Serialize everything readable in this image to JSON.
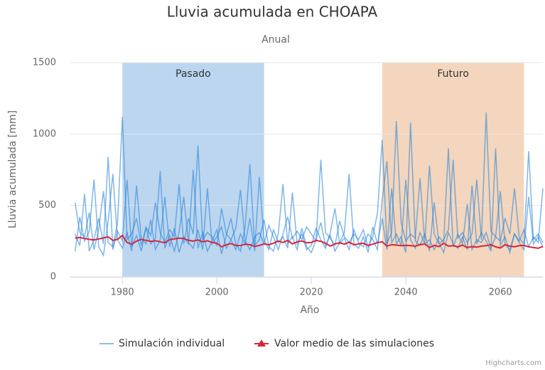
{
  "chart_data": {
    "type": "line",
    "title": "Lluvia acumulada en CHOAPA",
    "subtitle": "Anual",
    "x_label": "Año",
    "y_label": "Lluvia acumulada [mm]",
    "credits": "Highcharts.com",
    "xlim": [
      1969,
      2069
    ],
    "xticks": [
      1980,
      2000,
      2020,
      2040,
      2060
    ],
    "ylim": [
      0,
      1500
    ],
    "yticks": [
      0,
      500,
      1000,
      1500
    ],
    "grid": true,
    "legend": "bottom",
    "plot_bands": [
      {
        "label": "Pasado",
        "from": 1980,
        "to": 2010,
        "color": "#bcd6f0"
      },
      {
        "label": "Futuro",
        "from": 2035,
        "to": 2065,
        "color": "#f3d6bd"
      }
    ],
    "x": [
      1970,
      1971,
      1972,
      1973,
      1974,
      1975,
      1976,
      1977,
      1978,
      1979,
      1980,
      1981,
      1982,
      1983,
      1984,
      1985,
      1986,
      1987,
      1988,
      1989,
      1990,
      1991,
      1992,
      1993,
      1994,
      1995,
      1996,
      1997,
      1998,
      1999,
      2000,
      2001,
      2002,
      2003,
      2004,
      2005,
      2006,
      2007,
      2008,
      2009,
      2010,
      2011,
      2012,
      2013,
      2014,
      2015,
      2016,
      2017,
      2018,
      2019,
      2020,
      2021,
      2022,
      2023,
      2024,
      2025,
      2026,
      2027,
      2028,
      2029,
      2030,
      2031,
      2032,
      2033,
      2034,
      2035,
      2036,
      2037,
      2038,
      2039,
      2040,
      2041,
      2042,
      2043,
      2044,
      2045,
      2046,
      2047,
      2048,
      2049,
      2050,
      2051,
      2052,
      2053,
      2054,
      2055,
      2056,
      2057,
      2058,
      2059,
      2060,
      2061,
      2062,
      2063,
      2064,
      2065,
      2066,
      2067,
      2068,
      2069
    ],
    "simulations": {
      "name": "Simulación individual",
      "color": "#2b85d8",
      "values": [
        [
          520,
          310,
          280,
          450,
          190,
          330,
          600,
          240,
          210,
          380,
          1120,
          260,
          300,
          410,
          220,
          350,
          290,
          520,
          310,
          240,
          330,
          280,
          650,
          230,
          410,
          300,
          920,
          260,
          310,
          280,
          220,
          480,
          300,
          260,
          340,
          610,
          250,
          190,
          280,
          310,
          230,
          360,
          280,
          190,
          300,
          420,
          270,
          320,
          260,
          350,
          300,
          250,
          820,
          310,
          270,
          220,
          390,
          280,
          240,
          300,
          260,
          330,
          210,
          280,
          450,
          960,
          230,
          310,
          1090,
          380,
          250,
          300,
          270,
          690,
          240,
          780,
          300,
          230,
          260,
          330,
          820,
          270,
          310,
          240,
          300,
          680,
          260,
          1150,
          320,
          280,
          250,
          410,
          300,
          620,
          270,
          230,
          880,
          260,
          300,
          240
        ],
        [
          180,
          420,
          250,
          320,
          680,
          210,
          150,
          390,
          720,
          260,
          200,
          310,
          180,
          640,
          270,
          230,
          400,
          190,
          260,
          560,
          210,
          340,
          170,
          280,
          230,
          750,
          200,
          310,
          180,
          250,
          330,
          160,
          290,
          410,
          230,
          180,
          350,
          790,
          220,
          260,
          400,
          210,
          180,
          300,
          650,
          230,
          280,
          190,
          340,
          210,
          170,
          260,
          380,
          220,
          290,
          180,
          240,
          310,
          720,
          230,
          200,
          280,
          170,
          350,
          230,
          410,
          190,
          620,
          230,
          280,
          170,
          1080,
          250,
          220,
          300,
          180,
          520,
          240,
          170,
          310,
          230,
          200,
          280,
          190,
          640,
          230,
          310,
          250,
          180,
          900,
          220,
          280,
          170,
          300,
          240,
          190,
          560,
          230,
          280,
          210
        ],
        [
          300,
          220,
          580,
          180,
          260,
          410,
          230,
          840,
          190,
          320,
          250,
          680,
          210,
          290,
          180,
          340,
          230,
          270,
          740,
          200,
          290,
          180,
          310,
          560,
          240,
          200,
          330,
          190,
          620,
          230,
          280,
          350,
          200,
          260,
          190,
          300,
          230,
          410,
          180,
          700,
          260,
          190,
          330,
          240,
          280,
          200,
          590,
          230,
          300,
          190,
          220,
          340,
          260,
          200,
          310,
          480,
          230,
          270,
          190,
          330,
          240,
          210,
          300,
          260,
          190,
          540,
          810,
          240,
          300,
          220,
          680,
          260,
          200,
          310,
          230,
          260,
          190,
          280,
          240,
          900,
          210,
          300,
          230,
          510,
          190,
          260,
          240,
          310,
          200,
          280,
          600,
          230,
          190,
          300,
          250,
          330,
          210,
          280,
          240,
          620
        ]
      ]
    },
    "mean": {
      "name": "Valor medio de las simulaciones",
      "color": "#d7263d",
      "marker": "triangle",
      "values": [
        270,
        275,
        268,
        262,
        258,
        265,
        272,
        280,
        255,
        262,
        290,
        240,
        228,
        250,
        262,
        255,
        248,
        252,
        245,
        238,
        260,
        265,
        270,
        268,
        255,
        250,
        258,
        245,
        252,
        240,
        235,
        210,
        225,
        232,
        220,
        218,
        228,
        225,
        212,
        220,
        230,
        225,
        235,
        250,
        240,
        255,
        230,
        245,
        250,
        238,
        240,
        255,
        248,
        235,
        215,
        230,
        238,
        228,
        242,
        225,
        230,
        235,
        220,
        228,
        240,
        245,
        215,
        225,
        222,
        218,
        220,
        218,
        215,
        225,
        230,
        205,
        220,
        212,
        235,
        215,
        218,
        210,
        222,
        205,
        212,
        208,
        215,
        218,
        225,
        210,
        202,
        225,
        215,
        210,
        218,
        220,
        210,
        205,
        200,
        212
      ]
    }
  }
}
